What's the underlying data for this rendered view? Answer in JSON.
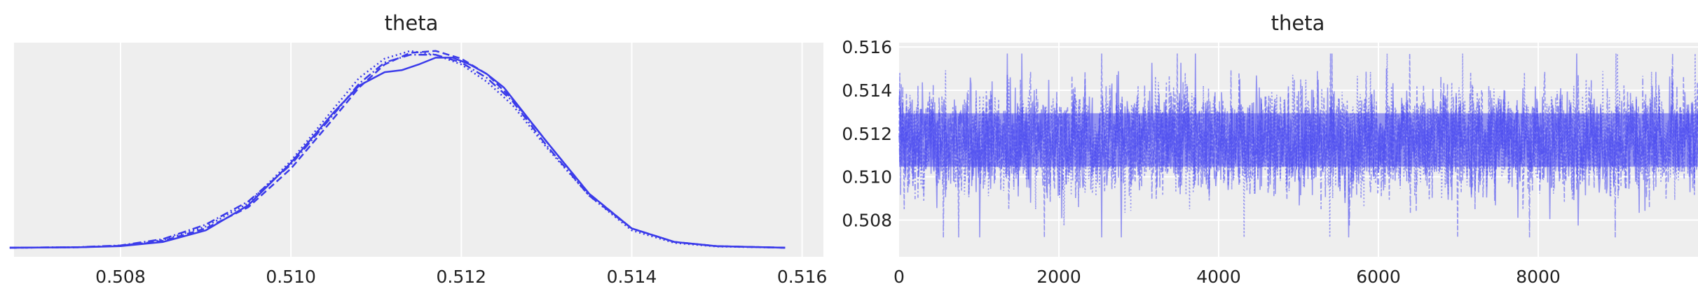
{
  "colors": {
    "series": "#3b3bea",
    "trace": "#4d4df0",
    "panel_background": "#eeeeee",
    "grid": "#ffffff"
  },
  "chart_data": [
    {
      "type": "line",
      "title": "theta",
      "xlabel": "",
      "ylabel": "",
      "xlim": [
        0.50675,
        0.51625
      ],
      "x_ticks": [
        "0.508",
        "0.510",
        "0.512",
        "0.514",
        "0.516"
      ],
      "x_tick_values": [
        0.508,
        0.51,
        0.512,
        0.514,
        0.516
      ],
      "y_ticks": [],
      "grid": true,
      "legend": false,
      "series": [
        {
          "line_style": "solid",
          "x": [
            0.5067,
            0.5075,
            0.508,
            0.5085,
            0.509,
            0.5095,
            0.51,
            0.5105,
            0.5108,
            0.5111,
            0.5113,
            0.5115,
            0.5117,
            0.5119,
            0.5121,
            0.5123,
            0.5125,
            0.513,
            0.5135,
            0.514,
            0.5145,
            0.515,
            0.5158
          ],
          "y": [
            0.0,
            0.002,
            0.008,
            0.03,
            0.09,
            0.22,
            0.44,
            0.7,
            0.84,
            0.91,
            0.92,
            0.95,
            0.985,
            0.985,
            0.95,
            0.9,
            0.83,
            0.55,
            0.28,
            0.1,
            0.03,
            0.008,
            0.0
          ]
        },
        {
          "line_style": "dashed",
          "x": [
            0.5067,
            0.5075,
            0.508,
            0.5085,
            0.509,
            0.5095,
            0.51,
            0.5105,
            0.5108,
            0.5111,
            0.5114,
            0.5117,
            0.512,
            0.5123,
            0.5126,
            0.513,
            0.5135,
            0.514,
            0.5145,
            0.515,
            0.5158
          ],
          "y": [
            0.0,
            0.002,
            0.01,
            0.035,
            0.1,
            0.21,
            0.41,
            0.67,
            0.83,
            0.95,
            1.01,
            1.02,
            0.98,
            0.9,
            0.77,
            0.55,
            0.28,
            0.1,
            0.03,
            0.008,
            0.0
          ]
        },
        {
          "line_style": "dotted",
          "x": [
            0.5067,
            0.5075,
            0.508,
            0.5085,
            0.509,
            0.5095,
            0.51,
            0.5105,
            0.5108,
            0.5111,
            0.5114,
            0.5117,
            0.512,
            0.5123,
            0.5126,
            0.513,
            0.5135,
            0.514,
            0.5145,
            0.515,
            0.5158
          ],
          "y": [
            0.0,
            0.002,
            0.01,
            0.04,
            0.11,
            0.23,
            0.45,
            0.72,
            0.88,
            0.98,
            1.02,
            1.0,
            0.95,
            0.86,
            0.74,
            0.52,
            0.27,
            0.09,
            0.025,
            0.006,
            0.0
          ]
        },
        {
          "line_style": "dash-dot",
          "x": [
            0.5067,
            0.5075,
            0.508,
            0.5085,
            0.509,
            0.5095,
            0.51,
            0.5105,
            0.5108,
            0.5111,
            0.5114,
            0.5117,
            0.512,
            0.5123,
            0.5126,
            0.513,
            0.5135,
            0.514,
            0.5145,
            0.515,
            0.5158
          ],
          "y": [
            0.0,
            0.003,
            0.012,
            0.045,
            0.12,
            0.24,
            0.43,
            0.69,
            0.85,
            0.96,
            1.0,
            1.0,
            0.96,
            0.88,
            0.76,
            0.53,
            0.27,
            0.1,
            0.03,
            0.008,
            0.0
          ]
        }
      ]
    },
    {
      "type": "line",
      "title": "theta",
      "xlabel": "",
      "ylabel": "",
      "xlim": [
        0,
        10000
      ],
      "ylim": [
        0.5063,
        0.5162
      ],
      "x_ticks": [
        "0",
        "2000",
        "4000",
        "6000",
        "8000"
      ],
      "x_tick_values": [
        0,
        2000,
        4000,
        6000,
        8000
      ],
      "y_ticks": [
        "0.508",
        "0.510",
        "0.512",
        "0.514",
        "0.516"
      ],
      "y_tick_values": [
        0.508,
        0.51,
        0.512,
        0.514,
        0.516
      ],
      "grid": true,
      "legend": false,
      "n_draws": 10000,
      "n_chains": 4,
      "trace_center": 0.5117,
      "trace_band": [
        0.5095,
        0.514
      ],
      "trace_extremes": [
        0.5068,
        0.5157
      ]
    }
  ]
}
